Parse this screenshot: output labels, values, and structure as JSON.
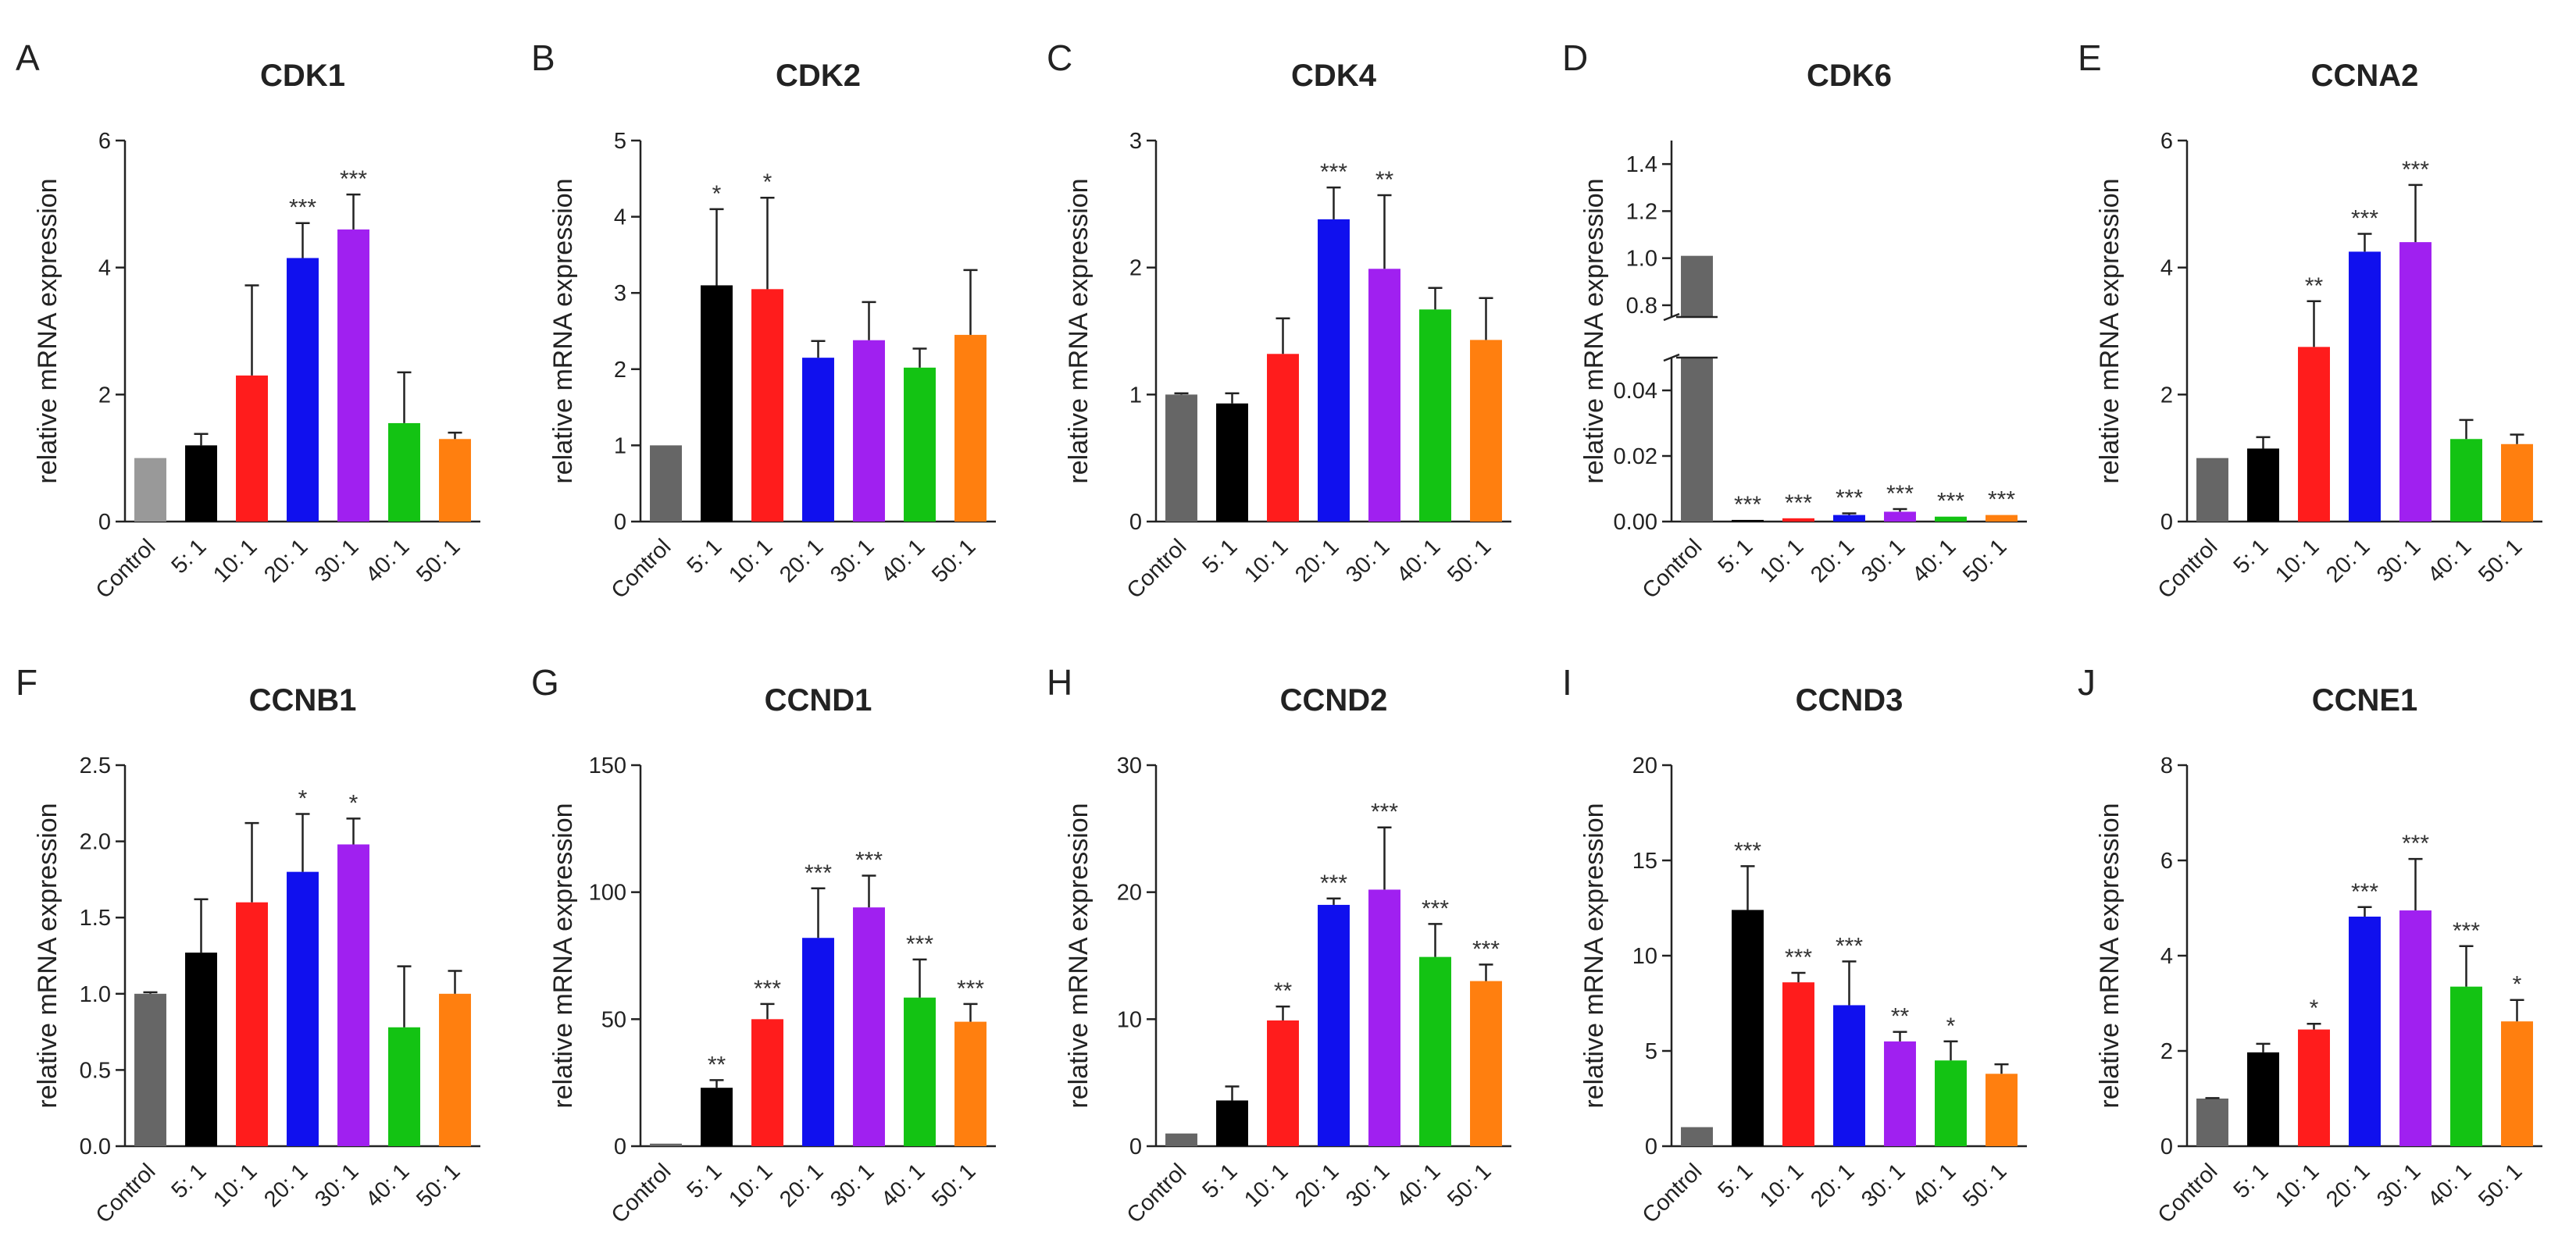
{
  "figure": {
    "ylabel": "relative mRNA expression",
    "categories": [
      "Control",
      "5: 1",
      "10: 1",
      "20: 1",
      "30: 1",
      "40: 1",
      "50: 1"
    ],
    "series_colors": [
      "#666666",
      "#000000",
      "#ff1c1c",
      "#1010ee",
      "#a020f0",
      "#13c313",
      "#ff7f0f"
    ]
  },
  "chart_data": [
    {
      "type": "bar",
      "letter": "A",
      "title": "CDK1",
      "xlabel": "",
      "ylabel": "relative mRNA expression",
      "categories": [
        "Control",
        "5: 1",
        "10: 1",
        "20: 1",
        "30: 1",
        "40: 1",
        "50: 1"
      ],
      "values": [
        1.0,
        1.2,
        2.3,
        4.15,
        4.6,
        1.55,
        1.3
      ],
      "errors": [
        0.0,
        0.18,
        1.42,
        0.55,
        0.55,
        0.8,
        0.1
      ],
      "significance": [
        "",
        "",
        "",
        "***",
        "***",
        "",
        ""
      ],
      "ylim": [
        0,
        6
      ],
      "yticks": [
        0,
        2,
        4,
        6
      ],
      "ytick_labels": [
        "0",
        "2",
        "4",
        "6"
      ],
      "control_color": "#999999"
    },
    {
      "type": "bar",
      "letter": "B",
      "title": "CDK2",
      "xlabel": "",
      "ylabel": "relative mRNA expression",
      "categories": [
        "Control",
        "5: 1",
        "10: 1",
        "20: 1",
        "30: 1",
        "40: 1",
        "50: 1"
      ],
      "values": [
        1.0,
        3.1,
        3.05,
        2.15,
        2.38,
        2.02,
        2.45
      ],
      "errors": [
        0.0,
        1.0,
        1.2,
        0.22,
        0.5,
        0.25,
        0.85
      ],
      "significance": [
        "",
        "*",
        "*",
        "",
        "",
        "",
        ""
      ],
      "ylim": [
        0,
        5
      ],
      "yticks": [
        0,
        1,
        2,
        3,
        4,
        5
      ],
      "ytick_labels": [
        "0",
        "1",
        "2",
        "3",
        "4",
        "5"
      ]
    },
    {
      "type": "bar",
      "letter": "C",
      "title": "CDK4",
      "xlabel": "",
      "ylabel": "relative mRNA expression",
      "categories": [
        "Control",
        "5: 1",
        "10: 1",
        "20: 1",
        "30: 1",
        "40: 1",
        "50: 1"
      ],
      "values": [
        1.0,
        0.93,
        1.32,
        2.38,
        1.99,
        1.67,
        1.43
      ],
      "errors": [
        0.01,
        0.08,
        0.28,
        0.25,
        0.58,
        0.17,
        0.33
      ],
      "significance": [
        "",
        "",
        "",
        "***",
        "**",
        "",
        ""
      ],
      "ylim": [
        0,
        3
      ],
      "yticks": [
        0,
        1,
        2,
        3
      ],
      "ytick_labels": [
        "0",
        "1",
        "2",
        "3"
      ]
    },
    {
      "type": "bar",
      "letter": "D",
      "title": "CDK6",
      "xlabel": "",
      "ylabel": "relative mRNA expression",
      "categories": [
        "Control",
        "5: 1",
        "10: 1",
        "20: 1",
        "30: 1",
        "40: 1",
        "50: 1"
      ],
      "values": [
        1.01,
        0.0005,
        0.001,
        0.002,
        0.003,
        0.0015,
        0.002
      ],
      "errors": [
        0.0,
        0.0,
        0.0,
        0.0005,
        0.0008,
        0.0,
        0.0
      ],
      "significance": [
        "",
        "***",
        "***",
        "***",
        "***",
        "***",
        "***"
      ],
      "broken_axis": true,
      "lower_ylim": [
        0,
        0.05
      ],
      "upper_ylim": [
        0.75,
        1.5
      ],
      "yticks": [
        0,
        0.02,
        0.04,
        0.8,
        1.0,
        1.2,
        1.4
      ],
      "ytick_labels": [
        "0.00",
        "0.02",
        "0.04",
        "0.8",
        "1.0",
        "1.2",
        "1.4"
      ]
    },
    {
      "type": "bar",
      "letter": "E",
      "title": "CCNA2",
      "xlabel": "",
      "ylabel": "relative mRNA expression",
      "categories": [
        "Control",
        "5: 1",
        "10: 1",
        "20: 1",
        "30: 1",
        "40: 1",
        "50: 1"
      ],
      "values": [
        1.0,
        1.15,
        2.75,
        4.25,
        4.4,
        1.3,
        1.22
      ],
      "errors": [
        0.0,
        0.18,
        0.72,
        0.28,
        0.9,
        0.3,
        0.15
      ],
      "significance": [
        "",
        "",
        "**",
        "***",
        "***",
        "",
        ""
      ],
      "ylim": [
        0,
        6
      ],
      "yticks": [
        0,
        2,
        4,
        6
      ],
      "ytick_labels": [
        "0",
        "2",
        "4",
        "6"
      ]
    },
    {
      "type": "bar",
      "letter": "F",
      "title": "CCNB1",
      "xlabel": "",
      "ylabel": "relative mRNA expression",
      "categories": [
        "Control",
        "5: 1",
        "10: 1",
        "20: 1",
        "30: 1",
        "40: 1",
        "50: 1"
      ],
      "values": [
        1.0,
        1.27,
        1.6,
        1.8,
        1.98,
        0.78,
        1.0
      ],
      "errors": [
        0.01,
        0.35,
        0.52,
        0.38,
        0.17,
        0.4,
        0.15
      ],
      "significance": [
        "",
        "",
        "",
        "*",
        "*",
        "",
        ""
      ],
      "ylim": [
        0,
        2.5
      ],
      "yticks": [
        0,
        0.5,
        1,
        1.5,
        2,
        2.5
      ],
      "ytick_labels": [
        "0.0",
        "0.5",
        "1.0",
        "1.5",
        "2.0",
        "2.5"
      ]
    },
    {
      "type": "bar",
      "letter": "G",
      "title": "CCND1",
      "xlabel": "",
      "ylabel": "relative mRNA expression",
      "categories": [
        "Control",
        "5: 1",
        "10: 1",
        "20: 1",
        "30: 1",
        "40: 1",
        "50: 1"
      ],
      "values": [
        1.0,
        23.0,
        50.0,
        82.0,
        94.0,
        58.5,
        49.0
      ],
      "errors": [
        0.0,
        3.0,
        6.0,
        19.5,
        12.5,
        15.0,
        7.0
      ],
      "significance": [
        "",
        "**",
        "***",
        "***",
        "***",
        "***",
        "***"
      ],
      "ylim": [
        0,
        150
      ],
      "yticks": [
        0,
        50,
        100,
        150
      ],
      "ytick_labels": [
        "0",
        "50",
        "100",
        "150"
      ]
    },
    {
      "type": "bar",
      "letter": "H",
      "title": "CCND2",
      "xlabel": "",
      "ylabel": "relative mRNA expression",
      "categories": [
        "Control",
        "5: 1",
        "10: 1",
        "20: 1",
        "30: 1",
        "40: 1",
        "50: 1"
      ],
      "values": [
        1.0,
        3.6,
        9.9,
        19.0,
        20.2,
        14.9,
        13.0
      ],
      "errors": [
        0.0,
        1.1,
        1.1,
        0.5,
        4.9,
        2.6,
        1.3
      ],
      "significance": [
        "",
        "",
        "**",
        "***",
        "***",
        "***",
        "***"
      ],
      "ylim": [
        0,
        30
      ],
      "yticks": [
        0,
        10,
        20,
        30
      ],
      "ytick_labels": [
        "0",
        "10",
        "20",
        "30"
      ]
    },
    {
      "type": "bar",
      "letter": "I",
      "title": "CCND3",
      "xlabel": "",
      "ylabel": "relative mRNA expression",
      "categories": [
        "Control",
        "5: 1",
        "10: 1",
        "20: 1",
        "30: 1",
        "40: 1",
        "50: 1"
      ],
      "values": [
        1.0,
        12.4,
        8.6,
        7.4,
        5.5,
        4.5,
        3.8
      ],
      "errors": [
        0.0,
        2.3,
        0.5,
        2.3,
        0.5,
        1.0,
        0.5
      ],
      "significance": [
        "",
        "***",
        "***",
        "***",
        "**",
        "*",
        ""
      ],
      "ylim": [
        0,
        20
      ],
      "yticks": [
        0,
        5,
        10,
        15,
        20
      ],
      "ytick_labels": [
        "0",
        "5",
        "10",
        "15",
        "20"
      ]
    },
    {
      "type": "bar",
      "letter": "J",
      "title": "CCNE1",
      "xlabel": "",
      "ylabel": "relative mRNA expression",
      "categories": [
        "Control",
        "5: 1",
        "10: 1",
        "20: 1",
        "30: 1",
        "40: 1",
        "50: 1"
      ],
      "values": [
        1.0,
        1.97,
        2.45,
        4.82,
        4.95,
        3.35,
        2.62
      ],
      "errors": [
        0.01,
        0.18,
        0.12,
        0.2,
        1.08,
        0.85,
        0.45
      ],
      "significance": [
        "",
        "",
        "*",
        "***",
        "***",
        "***",
        "*"
      ],
      "ylim": [
        0,
        8
      ],
      "yticks": [
        0,
        2,
        4,
        6,
        8
      ],
      "ytick_labels": [
        "0",
        "2",
        "4",
        "6",
        "8"
      ]
    }
  ]
}
